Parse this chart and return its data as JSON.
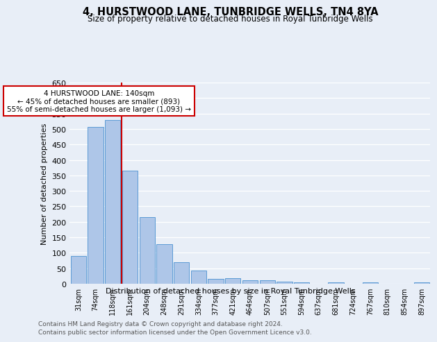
{
  "title": "4, HURSTWOOD LANE, TUNBRIDGE WELLS, TN4 8YA",
  "subtitle": "Size of property relative to detached houses in Royal Tunbridge Wells",
  "xlabel": "Distribution of detached houses by size in Royal Tunbridge Wells",
  "ylabel": "Number of detached properties",
  "bar_labels": [
    "31sqm",
    "74sqm",
    "118sqm",
    "161sqm",
    "204sqm",
    "248sqm",
    "291sqm",
    "334sqm",
    "377sqm",
    "421sqm",
    "464sqm",
    "507sqm",
    "551sqm",
    "594sqm",
    "637sqm",
    "681sqm",
    "724sqm",
    "767sqm",
    "810sqm",
    "854sqm",
    "897sqm"
  ],
  "bar_values": [
    90,
    507,
    528,
    365,
    215,
    127,
    70,
    43,
    16,
    19,
    11,
    11,
    7,
    5,
    0,
    5,
    0,
    4,
    0,
    0,
    4
  ],
  "bar_color": "#aec6e8",
  "bar_edge_color": "#5b9bd5",
  "annotation_text_line1": "4 HURSTWOOD LANE: 140sqm",
  "annotation_text_line2": "← 45% of detached houses are smaller (893)",
  "annotation_text_line3": "55% of semi-detached houses are larger (1,093) →",
  "red_line_color": "#cc0000",
  "annotation_box_color": "#ffffff",
  "annotation_box_edge": "#cc0000",
  "ylim": [
    0,
    650
  ],
  "yticks": [
    0,
    50,
    100,
    150,
    200,
    250,
    300,
    350,
    400,
    450,
    500,
    550,
    600,
    650
  ],
  "footer_line1": "Contains HM Land Registry data © Crown copyright and database right 2024.",
  "footer_line2": "Contains public sector information licensed under the Open Government Licence v3.0.",
  "bg_color": "#e8eef7",
  "plot_bg_color": "#e8eef7"
}
